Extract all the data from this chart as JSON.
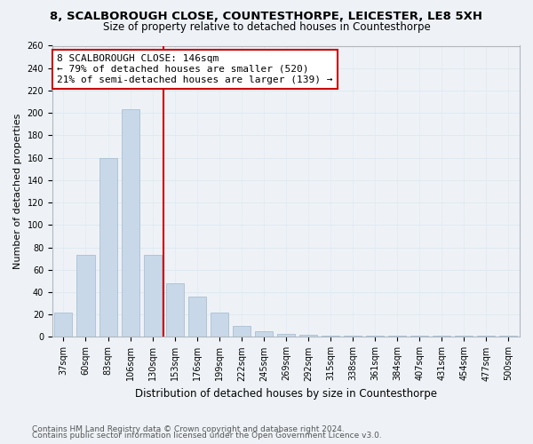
{
  "title": "8, SCALBOROUGH CLOSE, COUNTESTHORPE, LEICESTER, LE8 5XH",
  "subtitle": "Size of property relative to detached houses in Countesthorpe",
  "xlabel": "Distribution of detached houses by size in Countesthorpe",
  "ylabel": "Number of detached properties",
  "categories": [
    "37sqm",
    "60sqm",
    "83sqm",
    "106sqm",
    "130sqm",
    "153sqm",
    "176sqm",
    "199sqm",
    "222sqm",
    "245sqm",
    "269sqm",
    "292sqm",
    "315sqm",
    "338sqm",
    "361sqm",
    "384sqm",
    "407sqm",
    "431sqm",
    "454sqm",
    "477sqm",
    "500sqm"
  ],
  "values": [
    22,
    73,
    160,
    203,
    73,
    48,
    36,
    22,
    10,
    5,
    3,
    2,
    1,
    1,
    1,
    1,
    1,
    1,
    1,
    1,
    1
  ],
  "bar_color": "#c8d8e8",
  "bar_edge_color": "#a0b8cc",
  "vline_pos": 4.5,
  "vline_color": "#cc0000",
  "annotation_line1": "8 SCALBOROUGH CLOSE: 146sqm",
  "annotation_line2": "← 79% of detached houses are smaller (520)",
  "annotation_line3": "21% of semi-detached houses are larger (139) →",
  "annotation_box_color": "#ffffff",
  "annotation_edge_color": "#cc0000",
  "ylim": [
    0,
    260
  ],
  "yticks": [
    0,
    20,
    40,
    60,
    80,
    100,
    120,
    140,
    160,
    180,
    200,
    220,
    240,
    260
  ],
  "footer_line1": "Contains HM Land Registry data © Crown copyright and database right 2024.",
  "footer_line2": "Contains public sector information licensed under the Open Government Licence v3.0.",
  "title_fontsize": 9.5,
  "subtitle_fontsize": 8.5,
  "xlabel_fontsize": 8.5,
  "ylabel_fontsize": 8,
  "tick_fontsize": 7,
  "annotation_fontsize": 8,
  "footer_fontsize": 6.5,
  "grid_color": "#dde8f0",
  "background_color": "#eef2f7"
}
